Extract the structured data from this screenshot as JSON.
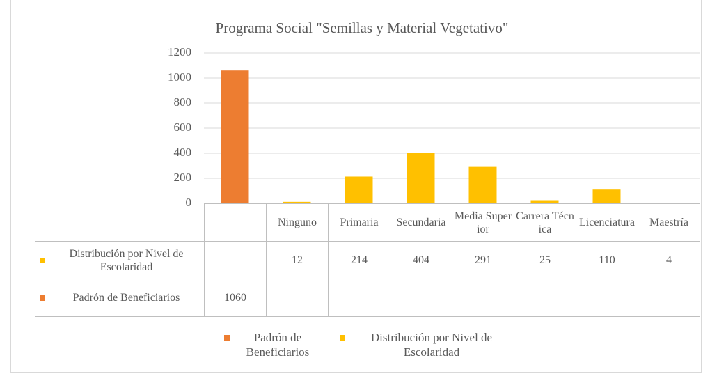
{
  "chart_data": {
    "type": "bar",
    "title": "Programa Social \"Semillas y Material Vegetativo\"",
    "categories": [
      null,
      "Ninguno",
      "Primaria",
      "Secundaria",
      "Media Superior",
      "Carrera Técnica",
      "Licenciatura",
      "Maestría"
    ],
    "series": [
      {
        "name": "Distribución por Nivel de Escolaridad",
        "color": "#ffc000",
        "values": [
          null,
          12,
          214,
          404,
          291,
          25,
          110,
          4
        ]
      },
      {
        "name": "Padrón de Beneficiarios",
        "color": "#ed7d31",
        "values": [
          1060,
          null,
          null,
          null,
          null,
          null,
          null,
          null
        ]
      }
    ],
    "legend_order": [
      1,
      0
    ],
    "ylim": [
      0,
      1200
    ],
    "yticks": [
      0,
      200,
      400,
      600,
      800,
      1000,
      1200
    ],
    "grid": true
  }
}
